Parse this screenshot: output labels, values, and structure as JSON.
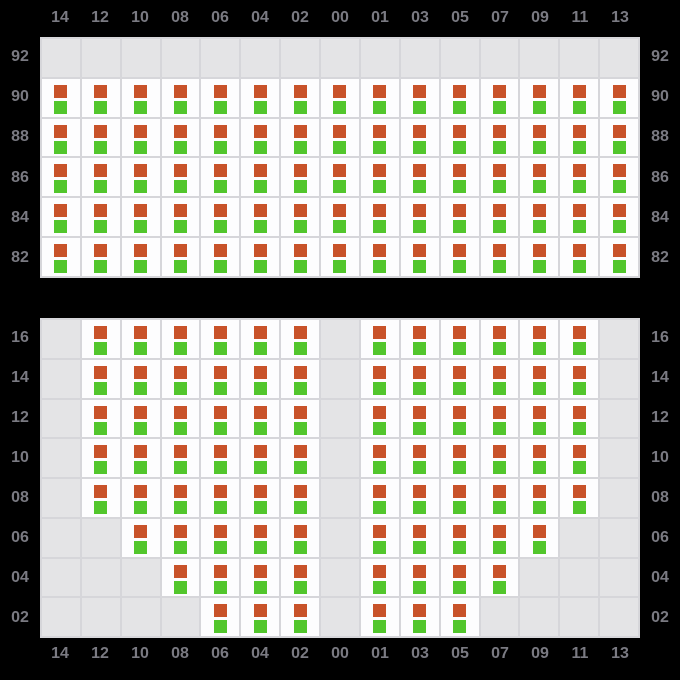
{
  "colors": {
    "background": "#000000",
    "grid_line": "#d6d6da",
    "empty_cell": "#e4e4e6",
    "occupied_cell": "#fdfdfe",
    "marker_top": "#c85229",
    "marker_bottom": "#52c62c",
    "axis_label": "#7a7a82"
  },
  "columns": [
    "14",
    "12",
    "10",
    "08",
    "06",
    "04",
    "02",
    "00",
    "01",
    "03",
    "05",
    "07",
    "09",
    "11",
    "13"
  ],
  "panels": [
    {
      "name": "upper-panel",
      "tiers": [
        "92",
        "90",
        "88",
        "86",
        "84",
        "82"
      ],
      "occupancy": [
        "000000000000000",
        "111111111111111",
        "111111111111111",
        "111111111111111",
        "111111111111111",
        "111111111111111"
      ]
    },
    {
      "name": "lower-panel",
      "tiers": [
        "16",
        "14",
        "12",
        "10",
        "08",
        "06",
        "04",
        "02"
      ],
      "occupancy": [
        "011111101111110",
        "011111101111110",
        "011111101111110",
        "011111101111110",
        "011111101111110",
        "001111101111100",
        "000111101111000",
        "000011101110000"
      ]
    }
  ]
}
